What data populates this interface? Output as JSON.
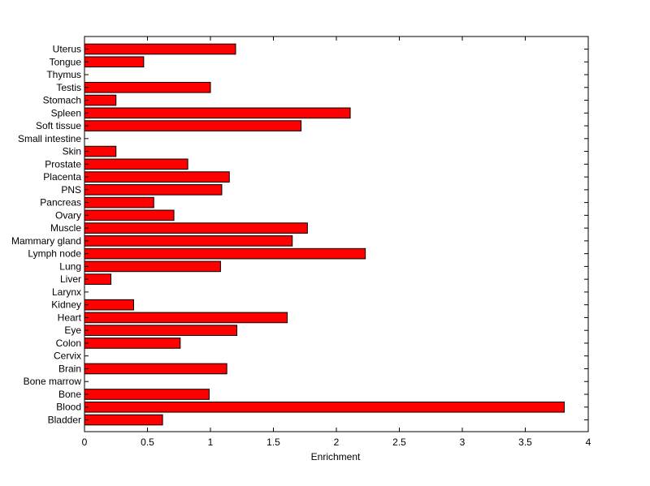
{
  "chart_data": {
    "type": "bar",
    "orientation": "horizontal",
    "title": "",
    "xlabel": "Enrichment",
    "ylabel": "",
    "xlim": [
      0,
      4
    ],
    "xticks": [
      0,
      0.5,
      1,
      1.5,
      2,
      2.5,
      3,
      3.5,
      4
    ],
    "xtick_labels": [
      "0",
      "0.5",
      "1",
      "1.5",
      "2",
      "2.5",
      "3",
      "3.5",
      "4"
    ],
    "grid": false,
    "bar_color": "#ff0000",
    "bar_edge_color": "#000000",
    "categories": [
      "Bladder",
      "Blood",
      "Bone",
      "Bone marrow",
      "Brain",
      "Cervix",
      "Colon",
      "Eye",
      "Heart",
      "Kidney",
      "Larynx",
      "Liver",
      "Lung",
      "Lymph node",
      "Mammary gland",
      "Muscle",
      "Ovary",
      "Pancreas",
      "PNS",
      "Placenta",
      "Prostate",
      "Skin",
      "Small intestine",
      "Soft tissue",
      "Spleen",
      "Stomach",
      "Testis",
      "Thymus",
      "Tongue",
      "Uterus"
    ],
    "values": [
      0.62,
      3.81,
      0.99,
      0,
      1.13,
      0,
      0.76,
      1.21,
      1.61,
      0.39,
      0,
      0.21,
      1.08,
      2.23,
      1.65,
      1.77,
      0.71,
      0.55,
      1.09,
      1.15,
      0.82,
      0.25,
      0,
      1.72,
      2.11,
      0.25,
      1.0,
      0,
      0.47,
      1.2
    ]
  }
}
